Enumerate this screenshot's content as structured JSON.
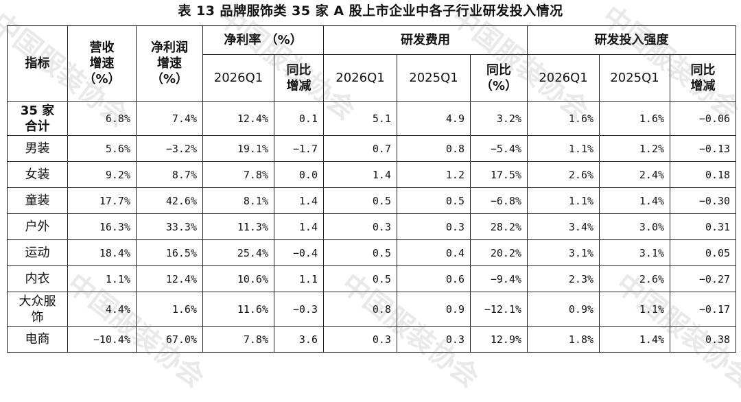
{
  "title": "表 13   品牌服饰类 35 家 A 股上市企业中各子行业研发投入情况",
  "watermark": "中国服装协会",
  "headers": {
    "indicator": "指标",
    "revenue": "营收\n增速\n（%）",
    "profit": "净利润\n增速\n（%）",
    "margin": "净利率 （%）",
    "rd": "研发费用",
    "intensity": "研发投入强度",
    "sub": [
      "2026Q1",
      "同比\n增减",
      "2026Q1",
      "2025Q1",
      "同比\n（%）",
      "2026Q1",
      "2025Q1",
      "同比\n增减"
    ]
  },
  "rows": [
    {
      "label": "35 家\n合计",
      "cells": [
        "6.8%",
        "7.4%",
        "12.4%",
        "0.1",
        "5.1",
        "4.9",
        "3.2%",
        "1.6%",
        "1.6%",
        "−0.06"
      ]
    },
    {
      "label": "男装",
      "cells": [
        "5.6%",
        "−3.2%",
        "19.1%",
        "−1.7",
        "0.7",
        "0.8",
        "−5.4%",
        "1.1%",
        "1.2%",
        "−0.13"
      ]
    },
    {
      "label": "女装",
      "cells": [
        "9.2%",
        "8.7%",
        "7.8%",
        "0.0",
        "1.4",
        "1.2",
        "17.5%",
        "2.6%",
        "2.4%",
        "0.18"
      ]
    },
    {
      "label": "童装",
      "cells": [
        "17.7%",
        "42.6%",
        "8.1%",
        "1.4",
        "0.5",
        "0.5",
        "−6.8%",
        "1.1%",
        "1.4%",
        "−0.30"
      ]
    },
    {
      "label": "户外",
      "cells": [
        "16.3%",
        "33.3%",
        "11.3%",
        "1.4",
        "0.3",
        "0.3",
        "28.2%",
        "3.4%",
        "3.0%",
        "0.31"
      ]
    },
    {
      "label": "运动",
      "cells": [
        "18.4%",
        "16.5%",
        "25.4%",
        "−0.4",
        "0.5",
        "0.4",
        "20.2%",
        "3.1%",
        "3.1%",
        "0.05"
      ]
    },
    {
      "label": "内衣",
      "cells": [
        "1.1%",
        "12.4%",
        "10.6%",
        "1.1",
        "0.5",
        "0.6",
        "−9.4%",
        "2.3%",
        "2.6%",
        "−0.27"
      ]
    },
    {
      "label": "大众服\n饰",
      "cells": [
        "4.4%",
        "1.6%",
        "11.6%",
        "−0.3",
        "0.8",
        "0.9",
        "−12.1%",
        "0.9%",
        "1.1%",
        "−0.17"
      ]
    },
    {
      "label": "电商",
      "cells": [
        "−10.4%",
        "67.0%",
        "7.8%",
        "3.6",
        "0.3",
        "0.3",
        "12.9%",
        "1.8%",
        "1.4%",
        "0.38"
      ]
    }
  ]
}
